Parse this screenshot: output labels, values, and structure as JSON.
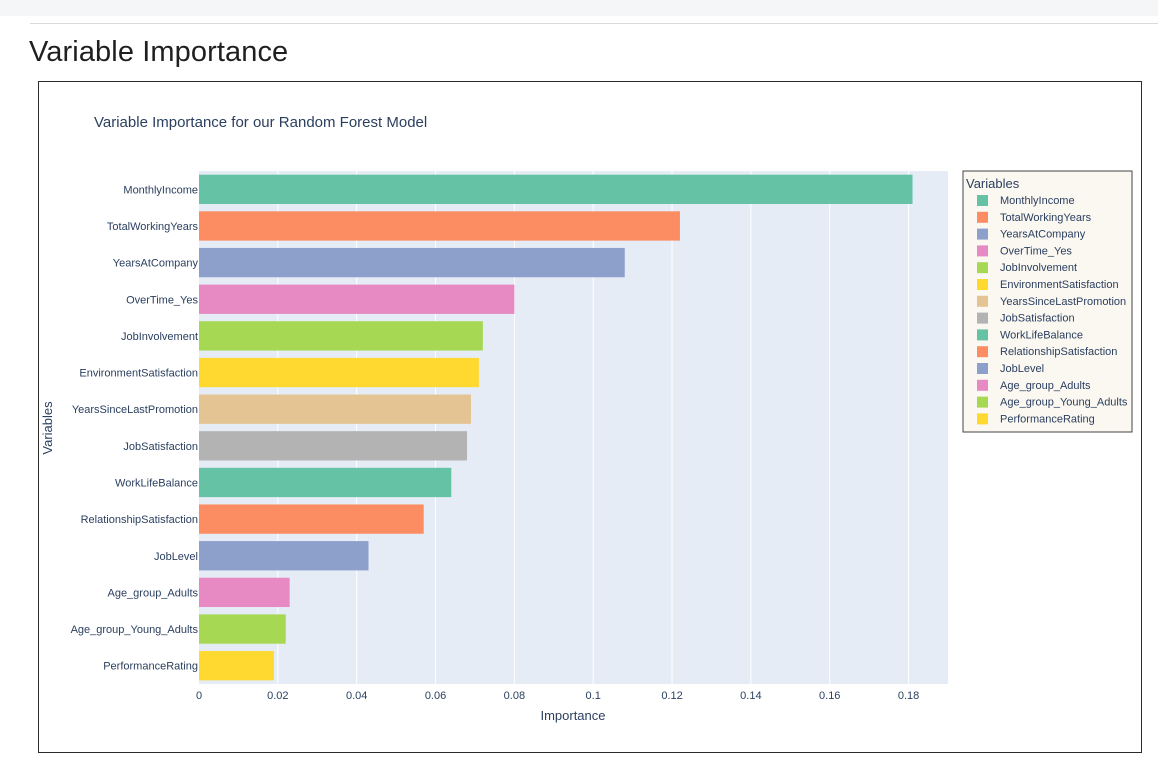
{
  "page": {
    "title": "Variable Importance"
  },
  "chart_data": {
    "type": "bar",
    "orientation": "horizontal",
    "title": "Variable Importance for our Random Forest Model",
    "xlabel": "Importance",
    "ylabel": "Variables",
    "xlim": [
      0,
      0.19
    ],
    "xticks": [
      0,
      0.02,
      0.04,
      0.06,
      0.08,
      0.1,
      0.12,
      0.14,
      0.16,
      0.18
    ],
    "xtick_labels": [
      "0",
      "0.02",
      "0.04",
      "0.06",
      "0.08",
      "0.1",
      "0.12",
      "0.14",
      "0.16",
      "0.18"
    ],
    "grid": true,
    "legend_title": "Variables",
    "legend_position": "right",
    "categories": [
      "MonthlyIncome",
      "TotalWorkingYears",
      "YearsAtCompany",
      "OverTime_Yes",
      "JobInvolvement",
      "EnvironmentSatisfaction",
      "YearsSinceLastPromotion",
      "JobSatisfaction",
      "WorkLifeBalance",
      "RelationshipSatisfaction",
      "JobLevel",
      "Age_group_Adults",
      "Age_group_Young_Adults",
      "PerformanceRating"
    ],
    "values": [
      0.181,
      0.122,
      0.108,
      0.08,
      0.072,
      0.071,
      0.069,
      0.068,
      0.064,
      0.057,
      0.043,
      0.023,
      0.022,
      0.019
    ],
    "colors": [
      "#66c2a5",
      "#fc8d62",
      "#8da0cb",
      "#e78ac3",
      "#a6d854",
      "#ffd92f",
      "#e5c494",
      "#b3b3b3",
      "#66c2a5",
      "#fc8d62",
      "#8da0cb",
      "#e78ac3",
      "#a6d854",
      "#ffd92f"
    ]
  }
}
